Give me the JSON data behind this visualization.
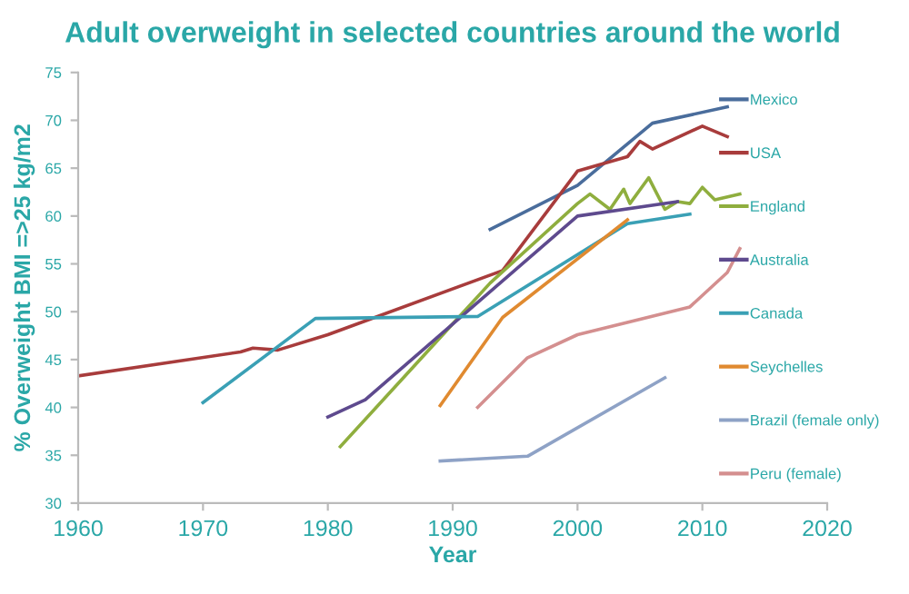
{
  "chart_data": {
    "type": "line",
    "title": "Adult overweight in selected countries around the world",
    "xlabel": "Year",
    "ylabel": "% Overweight BMI =>25 kg/m2",
    "xlim": [
      1960,
      2020
    ],
    "xticks": [
      1960,
      1970,
      1980,
      1990,
      2000,
      2010,
      2020
    ],
    "ylim": [
      30,
      75
    ],
    "yticks": [
      30,
      35,
      40,
      45,
      50,
      55,
      60,
      65,
      70,
      75
    ],
    "grid": false,
    "legend": "right",
    "marker": "none",
    "line_style": "solid",
    "series": [
      {
        "name": "Mexico",
        "color": "#4a6d9c",
        "x": [
          1993,
          2000,
          2006,
          2012
        ],
        "values": [
          58.6,
          63.2,
          69.7,
          71.4
        ]
      },
      {
        "name": "USA",
        "color": "#a83c3c",
        "x": [
          1960,
          1973,
          1974,
          1976,
          1980,
          1994,
          2000,
          2004,
          2005,
          2006,
          2010,
          2012
        ],
        "values": [
          43.3,
          45.8,
          46.2,
          46.0,
          47.6,
          54.3,
          64.7,
          66.2,
          67.8,
          67.0,
          69.4,
          68.3
        ]
      },
      {
        "name": "England",
        "color": "#8fae3e",
        "x": [
          1981,
          1993,
          2000,
          2001,
          2002.6,
          2003.7,
          2004.2,
          2005.7,
          2007,
          2008,
          2009,
          2010,
          2011,
          2013
        ],
        "values": [
          35.9,
          53.0,
          61.3,
          62.3,
          60.7,
          62.8,
          61.3,
          64.0,
          60.7,
          61.5,
          61.3,
          63.0,
          61.7,
          62.3
        ]
      },
      {
        "name": "Australia",
        "color": "#5e4a8e",
        "x": [
          1980,
          1983,
          2000,
          2008
        ],
        "values": [
          39.0,
          40.8,
          60.0,
          61.5
        ]
      },
      {
        "name": "Canada",
        "color": "#3aa0b5",
        "x": [
          1970,
          1979,
          1992,
          2004,
          2009
        ],
        "values": [
          40.5,
          49.3,
          49.5,
          59.2,
          60.2
        ]
      },
      {
        "name": "Seychelles",
        "color": "#e08a30",
        "x": [
          1989,
          1994,
          2004
        ],
        "values": [
          40.2,
          49.4,
          59.6
        ]
      },
      {
        "name": "Brazil (female only)",
        "color": "#8ea2c6",
        "x": [
          1989,
          1996,
          2007
        ],
        "values": [
          34.4,
          34.9,
          43.1
        ]
      },
      {
        "name": "Peru (female)",
        "color": "#d48f8f",
        "x": [
          1992,
          1996,
          2000,
          2009,
          2012,
          2013
        ],
        "values": [
          40.0,
          45.2,
          47.6,
          50.5,
          54.1,
          56.6
        ]
      }
    ]
  }
}
